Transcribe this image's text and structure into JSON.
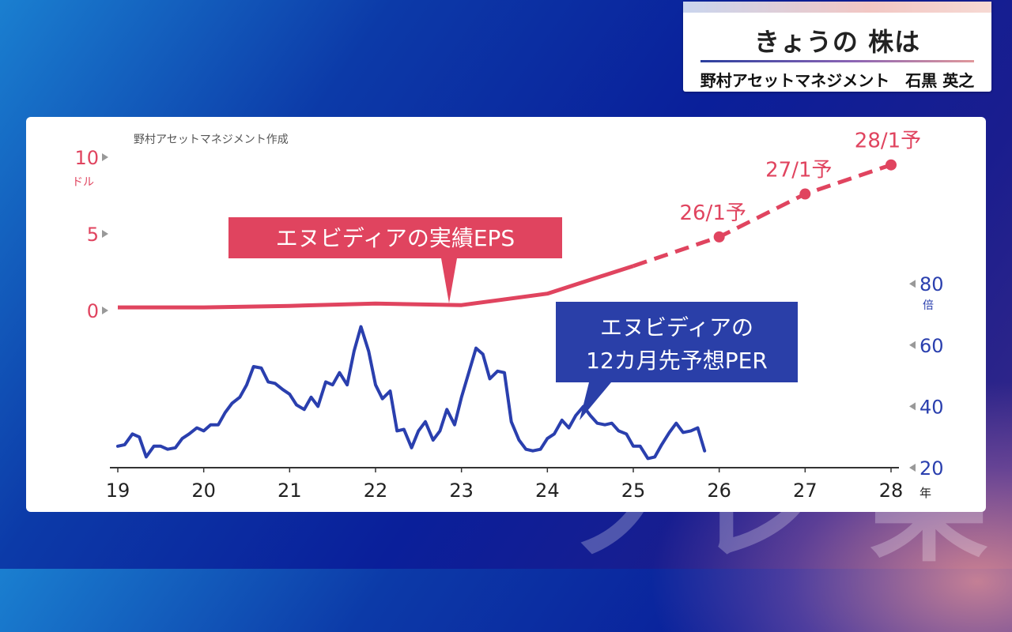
{
  "header": {
    "title": "きょうの 株は",
    "subtitle": "野村アセットマネジメント　石黒 英之"
  },
  "watermark": "ノレ 果",
  "chart": {
    "source_note": "野村アセットマネジメント作成",
    "left_axis_unit": "ドル",
    "right_axis_unit": "倍",
    "x_unit": "年",
    "eps_label": "エヌビディアの実績EPS",
    "per_label_line1": "エヌビディアの",
    "per_label_line2": "12カ月先予想PER"
  },
  "colors": {
    "eps": "#e0445f",
    "per": "#2a3fae",
    "per_callout": "#2a3fa8",
    "eps_callout": "#e0445f",
    "axis": "#333333"
  },
  "chart_data": {
    "type": "line",
    "x_ticks": [
      "19",
      "20",
      "21",
      "22",
      "23",
      "24",
      "25",
      "26",
      "27",
      "28"
    ],
    "xlim": [
      2019,
      2028
    ],
    "left_axis": {
      "ticks": [
        0,
        5,
        10
      ],
      "ylim": [
        0,
        10
      ],
      "unit": "ドル"
    },
    "right_axis": {
      "ticks": [
        20,
        40,
        60,
        80
      ],
      "ylim": [
        20,
        80
      ],
      "unit": "倍"
    },
    "eps_actual": [
      [
        2019.0,
        0.2
      ],
      [
        2020.0,
        0.2
      ],
      [
        2021.0,
        0.3
      ],
      [
        2022.0,
        0.45
      ],
      [
        2023.0,
        0.35
      ],
      [
        2024.0,
        1.1
      ],
      [
        2025.0,
        2.9
      ]
    ],
    "eps_forecast": [
      [
        2025.0,
        2.9
      ],
      [
        2026.0,
        4.8
      ],
      [
        2027.0,
        7.6
      ],
      [
        2028.0,
        9.5
      ]
    ],
    "eps_forecast_labels": [
      "26/1予",
      "27/1予",
      "28/1予"
    ],
    "per": [
      [
        2019.0,
        27
      ],
      [
        2019.08,
        27.5
      ],
      [
        2019.17,
        31
      ],
      [
        2019.25,
        30
      ],
      [
        2019.33,
        23.5
      ],
      [
        2019.42,
        27
      ],
      [
        2019.5,
        27
      ],
      [
        2019.58,
        26
      ],
      [
        2019.67,
        26.5
      ],
      [
        2019.75,
        29.5
      ],
      [
        2019.83,
        31
      ],
      [
        2019.92,
        33
      ],
      [
        2020.0,
        32
      ],
      [
        2020.08,
        34
      ],
      [
        2020.17,
        34
      ],
      [
        2020.25,
        38
      ],
      [
        2020.33,
        41
      ],
      [
        2020.42,
        43
      ],
      [
        2020.5,
        47
      ],
      [
        2020.58,
        53
      ],
      [
        2020.67,
        52.5
      ],
      [
        2020.75,
        48
      ],
      [
        2020.83,
        47.5
      ],
      [
        2020.92,
        45.5
      ],
      [
        2021.0,
        44
      ],
      [
        2021.08,
        40.5
      ],
      [
        2021.17,
        39
      ],
      [
        2021.25,
        43
      ],
      [
        2021.33,
        40
      ],
      [
        2021.42,
        48
      ],
      [
        2021.5,
        47
      ],
      [
        2021.58,
        51
      ],
      [
        2021.67,
        47
      ],
      [
        2021.75,
        58
      ],
      [
        2021.83,
        66
      ],
      [
        2021.92,
        58
      ],
      [
        2022.0,
        47
      ],
      [
        2022.08,
        42.5
      ],
      [
        2022.17,
        45
      ],
      [
        2022.25,
        32
      ],
      [
        2022.33,
        32.5
      ],
      [
        2022.42,
        26.5
      ],
      [
        2022.5,
        32
      ],
      [
        2022.58,
        35
      ],
      [
        2022.67,
        29
      ],
      [
        2022.75,
        32
      ],
      [
        2022.83,
        39
      ],
      [
        2022.92,
        34
      ],
      [
        2023.0,
        43
      ],
      [
        2023.17,
        59
      ],
      [
        2023.25,
        57
      ],
      [
        2023.33,
        49
      ],
      [
        2023.42,
        51.5
      ],
      [
        2023.5,
        51
      ],
      [
        2023.58,
        35
      ],
      [
        2023.67,
        29
      ],
      [
        2023.75,
        26
      ],
      [
        2023.83,
        25.5
      ],
      [
        2023.92,
        26
      ],
      [
        2024.0,
        29.5
      ],
      [
        2024.08,
        31
      ],
      [
        2024.17,
        35.5
      ],
      [
        2024.25,
        33
      ],
      [
        2024.33,
        37
      ],
      [
        2024.42,
        40
      ],
      [
        2024.5,
        37
      ],
      [
        2024.58,
        34.5
      ],
      [
        2024.67,
        34
      ],
      [
        2024.75,
        34.5
      ],
      [
        2024.83,
        32
      ],
      [
        2024.92,
        31
      ],
      [
        2025.0,
        27
      ],
      [
        2025.08,
        27
      ],
      [
        2025.17,
        23
      ],
      [
        2025.25,
        23.5
      ],
      [
        2025.33,
        27.5
      ],
      [
        2025.42,
        31.5
      ],
      [
        2025.5,
        34.5
      ],
      [
        2025.58,
        31.5
      ],
      [
        2025.67,
        32
      ],
      [
        2025.75,
        33
      ],
      [
        2025.83,
        25.5
      ]
    ],
    "series": [
      {
        "name": "エヌビディアの実績EPS",
        "axis": "left"
      },
      {
        "name": "エヌビディアの12カ月先予想PER",
        "axis": "right"
      }
    ]
  }
}
